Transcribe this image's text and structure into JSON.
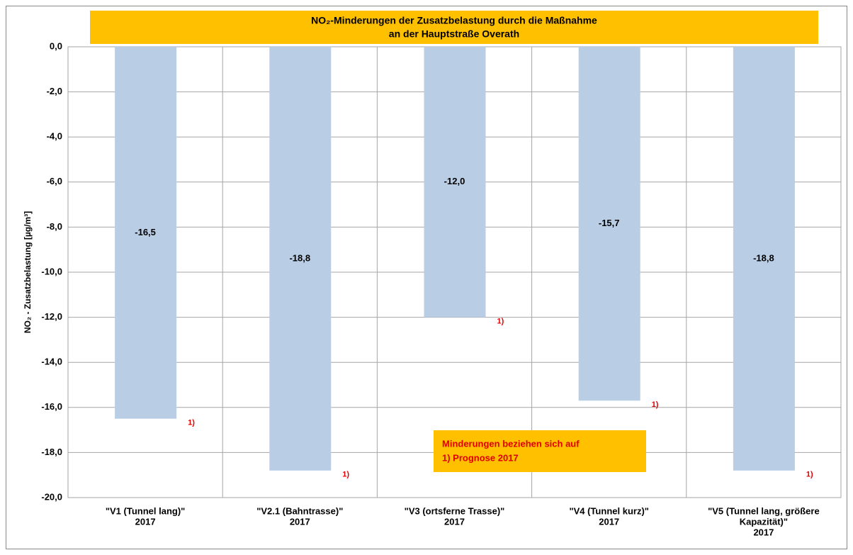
{
  "chart_data": {
    "type": "bar",
    "title": [
      "NO₂-Minderungen der Zusatzbelastung durch die Maßnahme",
      "an der Hauptstraße Overath"
    ],
    "y_label": "NO₂ - Zusatzbelastung  [µg/m³]",
    "categories": [
      [
        "\"V1 (Tunnel  lang)\"",
        "2017"
      ],
      [
        "\"V2.1 (Bahntrasse)\"",
        "2017"
      ],
      [
        "\"V3 (ortsferne Trasse)\"",
        "2017"
      ],
      [
        "\"V4 (Tunnel  kurz)\"",
        "2017"
      ],
      [
        "\"V5 (Tunnel lang, größere",
        "Kapazität)\"",
        "2017"
      ]
    ],
    "values": [
      -16.5,
      -18.8,
      -12.0,
      -15.7,
      -18.8
    ],
    "value_labels": [
      "-16,5",
      "-18,8",
      "-12,0",
      "-15,7",
      "-18,8"
    ],
    "bar_notes": [
      "1)",
      "1)",
      "1)",
      "1)",
      "1)"
    ],
    "note": [
      "Minderungen beziehen sich auf",
      "1)  Prognose 2017"
    ],
    "color": "#b9cde5",
    "ylim": [
      -20,
      0
    ],
    "yticks": [
      {
        "value": 0,
        "label": "0,0"
      },
      {
        "value": -2,
        "label": "-2,0"
      },
      {
        "value": -4,
        "label": "-4,0"
      },
      {
        "value": -6,
        "label": "-6,0"
      },
      {
        "value": -8,
        "label": "-8,0"
      },
      {
        "value": -10,
        "label": "-10,0"
      },
      {
        "value": -12,
        "label": "-12,0"
      },
      {
        "value": -14,
        "label": "-14,0"
      },
      {
        "value": -16,
        "label": "-16,0"
      },
      {
        "value": -18,
        "label": "-18,0"
      },
      {
        "value": -20,
        "label": "-20,0"
      }
    ],
    "grid": true
  }
}
